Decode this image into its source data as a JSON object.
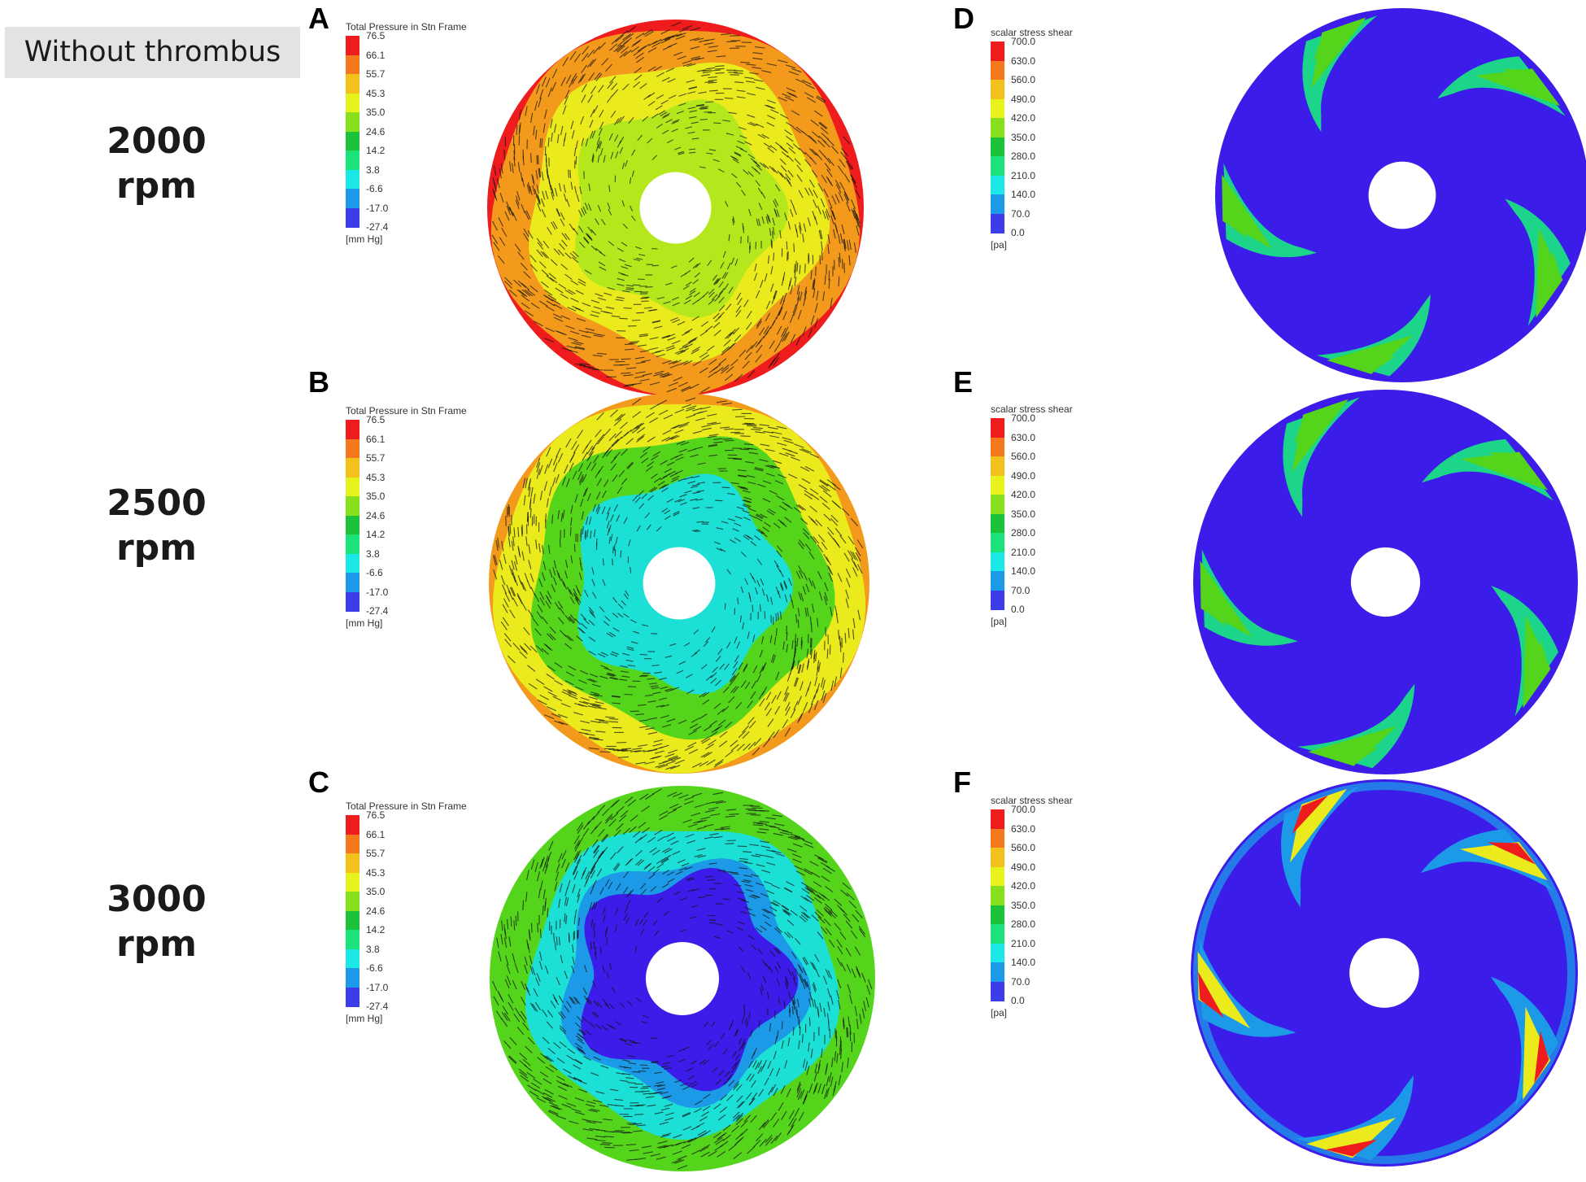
{
  "header": {
    "label": "Without thrombus"
  },
  "rows": [
    {
      "speed_value": "2000",
      "speed_unit": "rpm"
    },
    {
      "speed_value": "2500",
      "speed_unit": "rpm"
    },
    {
      "speed_value": "3000",
      "speed_unit": "rpm"
    }
  ],
  "panels": {
    "A": {
      "letter": "A"
    },
    "B": {
      "letter": "B"
    },
    "C": {
      "letter": "C"
    },
    "D": {
      "letter": "D"
    },
    "E": {
      "letter": "E"
    },
    "F": {
      "letter": "F"
    }
  },
  "pressure_legend": {
    "title": "Total Pressure in Stn Frame",
    "unit": "[mm Hg]",
    "ticks": [
      "76.5",
      "66.1",
      "55.7",
      "45.3",
      "35.0",
      "24.6",
      "14.2",
      "3.8",
      "-6.6",
      "-17.0",
      "-27.4"
    ],
    "colors": [
      "#ee1c1c",
      "#f5791c",
      "#f2c11c",
      "#e8f21c",
      "#86e11c",
      "#1cc33a",
      "#1ce27a",
      "#1ce8e8",
      "#1c9ae8",
      "#3c3ce8"
    ]
  },
  "stress_legend": {
    "title": "scalar stress shear",
    "unit": "[pa]",
    "ticks": [
      "700.0",
      "630.0",
      "560.0",
      "490.0",
      "420.0",
      "350.0",
      "280.0",
      "210.0",
      "140.0",
      "70.0",
      "0.0"
    ],
    "colors": [
      "#ee1c1c",
      "#f5791c",
      "#f2c11c",
      "#e8f21c",
      "#86e11c",
      "#1cc33a",
      "#1ce27a",
      "#1ce8e8",
      "#1c9ae8",
      "#3c3ce8"
    ]
  },
  "colors": {
    "impeller_background": "#3c1ce8",
    "red": "#ee1c1c",
    "orange": "#f39a1c",
    "yellow": "#eaea1c",
    "yellowgreen": "#b5e81c",
    "green": "#55d41c",
    "teal": "#1cd58a",
    "cyan": "#1ce0d6",
    "lightblue": "#1c9ae8",
    "blue": "#3c1ce8"
  }
}
